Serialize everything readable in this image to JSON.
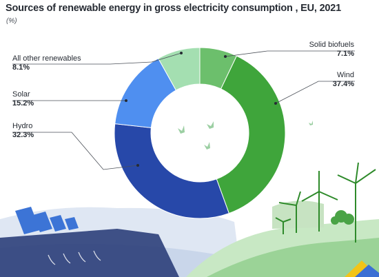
{
  "header": {
    "title": "Sources of renewable energy in gross electricity consumption , EU, 2021",
    "unit": "(%)"
  },
  "colors": {
    "solid_biofuels": "#6cbf6c",
    "wind": "#3fa53b",
    "hydro": "#2748a9",
    "solar": "#4f8ff0",
    "other": "#a4dfb1",
    "leader": "#4a4f57"
  },
  "chart_data": {
    "type": "pie",
    "title": "Sources of renewable energy in gross electricity consumption , EU, 2021",
    "unit": "(%)",
    "slices": [
      {
        "label": "Solid biofuels",
        "value": 7.1,
        "display": "7.1%"
      },
      {
        "label": "Wind",
        "value": 37.4,
        "display": "37.4%"
      },
      {
        "label": "Hydro",
        "value": 32.3,
        "display": "32.3%"
      },
      {
        "label": "Solar",
        "value": 15.2,
        "display": "15.2%"
      },
      {
        "label": "All other renewables",
        "value": 8.1,
        "display": "8.1%"
      }
    ]
  }
}
